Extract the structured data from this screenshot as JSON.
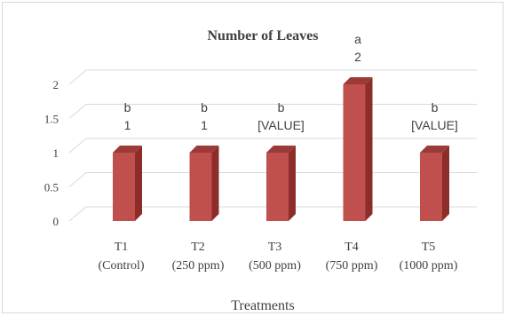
{
  "chart_data": {
    "type": "bar",
    "title": "Number of Leaves",
    "xlabel": "Treatments",
    "ylabel": "",
    "ylim": [
      0,
      2
    ],
    "yticks": [
      "0",
      "0.5",
      "1",
      "1.5",
      "2"
    ],
    "categories": [
      {
        "line1": "T1",
        "line2": "(Control)"
      },
      {
        "line1": "T2",
        "line2": "(250 ppm)"
      },
      {
        "line1": "T3",
        "line2": "(500 ppm)"
      },
      {
        "line1": "T4",
        "line2": "(750 ppm)"
      },
      {
        "line1": "T5",
        "line2": "(1000 ppm)"
      }
    ],
    "values": [
      1,
      1,
      1,
      2,
      1
    ],
    "data_labels": [
      "1",
      "1",
      "[VALUE]",
      "2",
      "[VALUE]"
    ],
    "significance_letters": [
      "b",
      "b",
      "b",
      "a",
      "b"
    ],
    "grid": true,
    "style": "3d-column",
    "colors": {
      "bar_front": "#c0504d",
      "bar_side": "#8c2d2a",
      "bar_top": "#9b3a37"
    }
  }
}
